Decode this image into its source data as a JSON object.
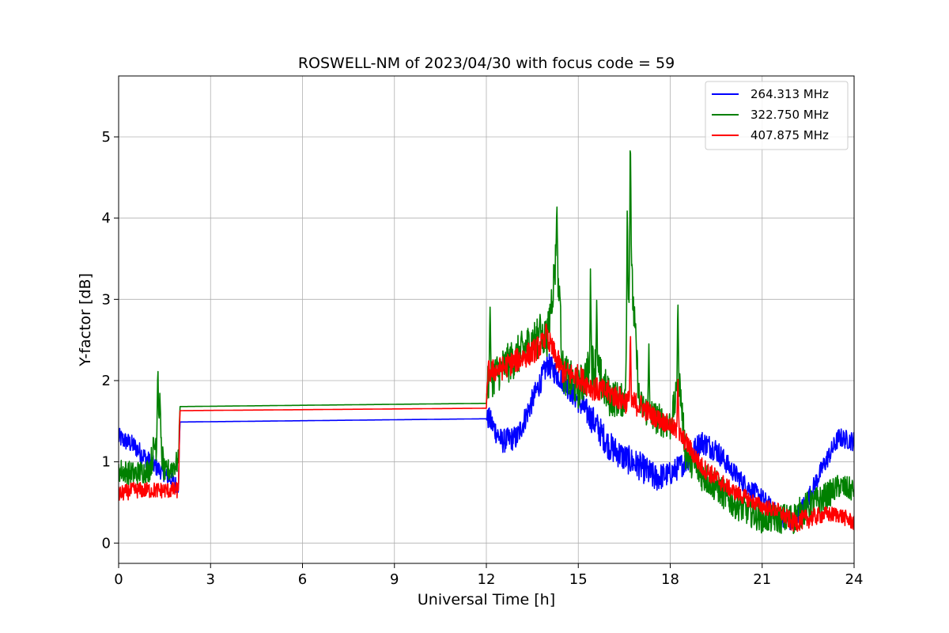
{
  "chart_data": {
    "type": "line",
    "title": "ROSWELL-NM of 2023/04/30 with focus code = 59",
    "xlabel": "Universal Time [h]",
    "ylabel": "Y-factor [dB]",
    "xlim": [
      0,
      24
    ],
    "ylim": [
      -0.25,
      5.75
    ],
    "xticks": [
      0,
      3,
      6,
      9,
      12,
      15,
      18,
      21,
      24
    ],
    "yticks": [
      0,
      1,
      2,
      3,
      4,
      5
    ],
    "grid": true,
    "legend_position": "top-right",
    "series": [
      {
        "name": "264.313 MHz",
        "color": "#0000ff",
        "x": [
          0,
          0.5,
          1.0,
          1.5,
          1.95,
          2.0,
          12.0,
          12.05,
          12.5,
          13.0,
          13.5,
          14.0,
          14.5,
          15.0,
          15.5,
          16.0,
          16.5,
          17.0,
          17.5,
          18.0,
          18.5,
          19.0,
          19.5,
          20.0,
          20.5,
          21.0,
          21.5,
          22.0,
          22.5,
          23.0,
          23.5,
          24.0
        ],
        "y": [
          1.3,
          1.2,
          1.0,
          0.85,
          0.7,
          1.49,
          1.53,
          1.55,
          1.25,
          1.3,
          1.75,
          2.2,
          2.0,
          1.75,
          1.5,
          1.2,
          1.05,
          0.95,
          0.8,
          0.85,
          1.0,
          1.25,
          1.15,
          0.9,
          0.7,
          0.55,
          0.35,
          0.25,
          0.55,
          0.95,
          1.3,
          1.25
        ],
        "amp": [
          0.12,
          0.12,
          0.12,
          0.1,
          0.1,
          0,
          0,
          0.15,
          0.15,
          0.15,
          0.15,
          0.15,
          0.15,
          0.15,
          0.18,
          0.18,
          0.18,
          0.18,
          0.18,
          0.15,
          0.15,
          0.15,
          0.15,
          0.12,
          0.12,
          0.12,
          0.12,
          0.12,
          0.12,
          0.12,
          0.12,
          0.12
        ]
      },
      {
        "name": "322.750 MHz",
        "color": "#008000",
        "x": [
          0,
          0.5,
          1.0,
          1.3,
          1.5,
          1.95,
          2.0,
          12.0,
          12.05,
          12.5,
          13.0,
          13.5,
          14.0,
          14.3,
          14.5,
          15.0,
          15.5,
          16.0,
          16.5,
          16.7,
          17.0,
          17.5,
          18.0,
          18.3,
          18.5,
          19.0,
          19.5,
          20.0,
          20.5,
          21.0,
          21.5,
          22.0,
          22.5,
          23.0,
          23.5,
          24.0
        ],
        "y": [
          0.9,
          0.85,
          0.9,
          1.4,
          0.85,
          1.0,
          1.68,
          1.72,
          2.0,
          2.15,
          2.3,
          2.5,
          2.55,
          3.6,
          2.1,
          1.9,
          2.2,
          1.8,
          1.75,
          3.5,
          1.7,
          1.55,
          1.45,
          2.0,
          1.1,
          0.85,
          0.7,
          0.5,
          0.4,
          0.3,
          0.3,
          0.3,
          0.45,
          0.55,
          0.7,
          0.65
        ],
        "amp": [
          0.15,
          0.15,
          0.15,
          0.3,
          0.15,
          0.15,
          0,
          0,
          0.25,
          0.25,
          0.25,
          0.25,
          0.25,
          0.3,
          0.25,
          0.25,
          0.3,
          0.25,
          0.2,
          0.3,
          0.2,
          0.2,
          0.2,
          0.2,
          0.2,
          0.2,
          0.2,
          0.18,
          0.18,
          0.18,
          0.18,
          0.2,
          0.2,
          0.18,
          0.15,
          0.15
        ]
      },
      {
        "name": "407.875 MHz",
        "color": "#ff0000",
        "x": [
          0,
          0.5,
          1.0,
          1.5,
          1.95,
          2.0,
          12.0,
          12.05,
          12.5,
          13.0,
          13.5,
          14.0,
          14.5,
          15.0,
          15.5,
          16.0,
          16.5,
          17.0,
          17.5,
          18.0,
          18.5,
          19.0,
          19.5,
          20.0,
          20.5,
          21.0,
          21.5,
          22.0,
          22.5,
          23.0,
          23.5,
          24.0
        ],
        "y": [
          0.6,
          0.65,
          0.65,
          0.65,
          0.65,
          1.63,
          1.66,
          2.1,
          2.15,
          2.25,
          2.35,
          2.5,
          2.1,
          2.05,
          1.9,
          1.85,
          1.75,
          1.7,
          1.55,
          1.45,
          1.25,
          0.95,
          0.8,
          0.65,
          0.55,
          0.45,
          0.4,
          0.25,
          0.3,
          0.35,
          0.35,
          0.25
        ],
        "amp": [
          0.1,
          0.1,
          0.1,
          0.1,
          0.1,
          0,
          0,
          0.15,
          0.15,
          0.15,
          0.15,
          0.15,
          0.15,
          0.15,
          0.15,
          0.15,
          0.15,
          0.15,
          0.12,
          0.12,
          0.12,
          0.12,
          0.12,
          0.1,
          0.1,
          0.1,
          0.1,
          0.12,
          0.12,
          0.1,
          0.1,
          0.1
        ]
      }
    ],
    "spikes": [
      {
        "series": 1,
        "x": 1.28,
        "y": 2.33
      },
      {
        "series": 1,
        "x": 1.35,
        "y": 2.0
      },
      {
        "series": 1,
        "x": 12.12,
        "y": 3.05
      },
      {
        "series": 1,
        "x": 13.75,
        "y": 2.9
      },
      {
        "series": 1,
        "x": 14.3,
        "y": 4.25
      },
      {
        "series": 1,
        "x": 14.4,
        "y": 3.1
      },
      {
        "series": 1,
        "x": 15.4,
        "y": 3.55
      },
      {
        "series": 1,
        "x": 15.6,
        "y": 3.05
      },
      {
        "series": 1,
        "x": 16.6,
        "y": 4.35
      },
      {
        "series": 1,
        "x": 16.7,
        "y": 5.45
      },
      {
        "series": 1,
        "x": 17.3,
        "y": 2.6
      },
      {
        "series": 1,
        "x": 18.25,
        "y": 3.1
      },
      {
        "series": 2,
        "x": 16.7,
        "y": 2.75
      },
      {
        "series": 2,
        "x": 18.25,
        "y": 2.25
      },
      {
        "series": 2,
        "x": 13.95,
        "y": 2.75
      }
    ]
  }
}
